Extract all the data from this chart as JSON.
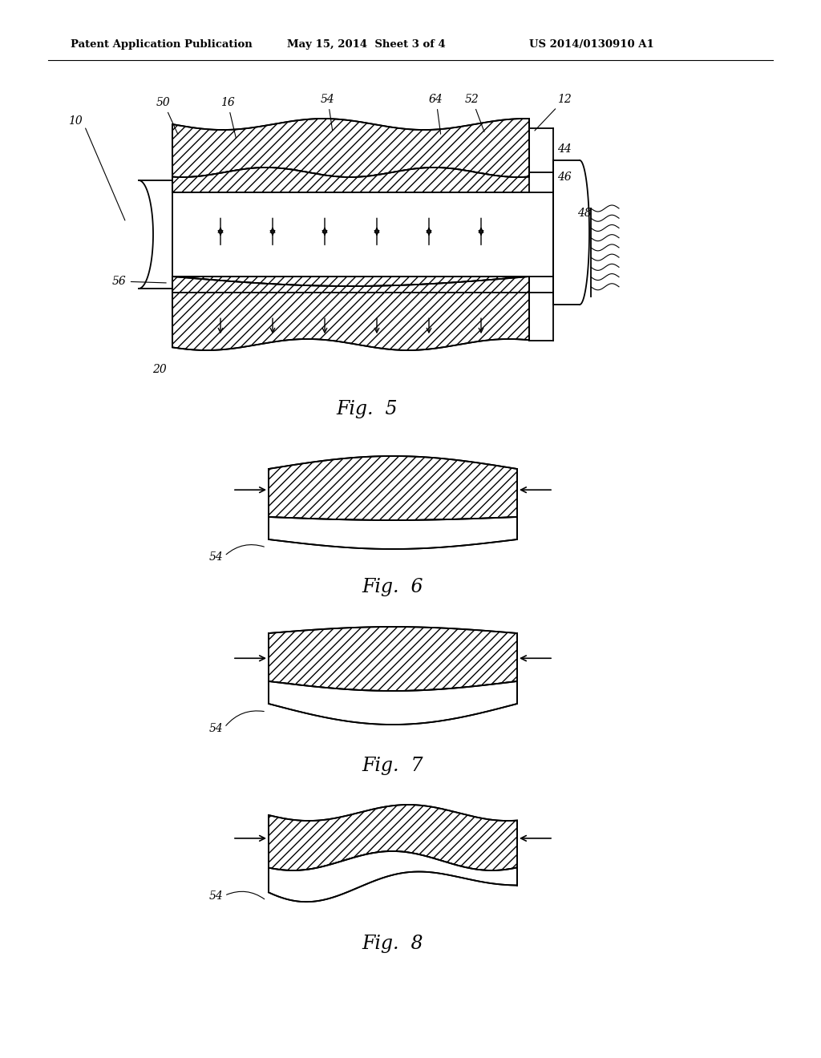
{
  "header_left": "Patent Application Publication",
  "header_mid": "May 15, 2014  Sheet 3 of 4",
  "header_right": "US 2014/0130910 A1",
  "fig5_label": "Fig.  5",
  "fig6_label": "Fig.  6",
  "fig7_label": "Fig.  7",
  "fig8_label": "Fig.  8",
  "bg_color": "#ffffff",
  "line_color": "#000000"
}
